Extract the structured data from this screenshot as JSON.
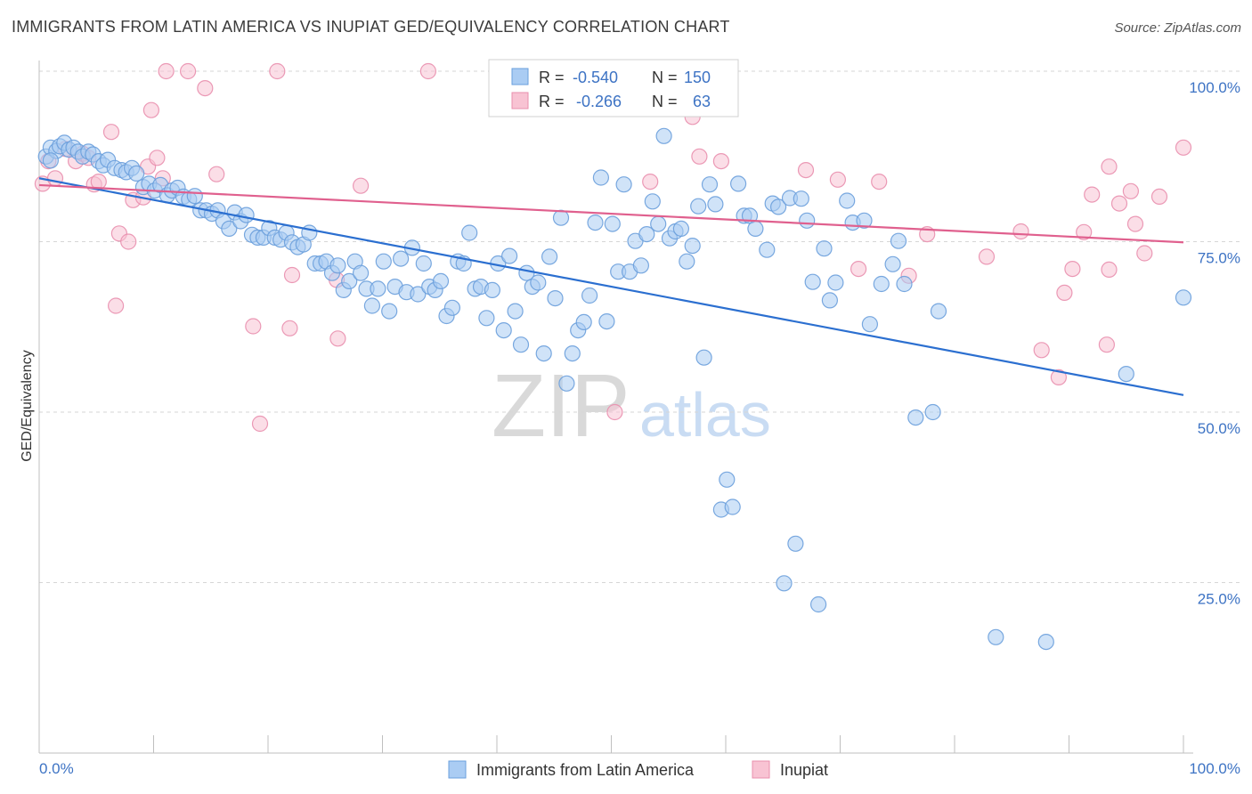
{
  "title": "IMMIGRANTS FROM LATIN AMERICA VS INUPIAT GED/EQUIVALENCY CORRELATION CHART",
  "source": "Source: ZipAtlas.com",
  "watermark": {
    "zip": "ZIP",
    "atlas": "atlas"
  },
  "colors": {
    "blue_fill": "#aaccf3",
    "blue_stroke": "#6a9fdc",
    "blue_line": "#2b6fd0",
    "pink_fill": "#f8c3d3",
    "pink_stroke": "#e98fae",
    "pink_line": "#e0608e",
    "axis_label": "#3d73c4",
    "grid": "#d6d6d6",
    "watermark": "#d9d9d9",
    "watermark_atlas": "#c9dcf3"
  },
  "legend_top": {
    "rows": [
      {
        "r_label": "R = ",
        "r_value": "-0.540",
        "n_label": "N = ",
        "n_value": "150"
      },
      {
        "r_label": "R = ",
        "r_value": "-0.266",
        "n_label": "N = ",
        "n_value": "63"
      }
    ]
  },
  "chart_data": {
    "type": "scatter",
    "title": "IMMIGRANTS FROM LATIN AMERICA VS INUPIAT GED/EQUIVALENCY CORRELATION CHART",
    "xlabel": "",
    "ylabel": "GED/Equivalency",
    "xlim": [
      0,
      100
    ],
    "ylim": [
      0,
      100
    ],
    "x_tick_labels": [
      "0.0%",
      "100.0%"
    ],
    "y_tick_labels": [
      "25.0%",
      "50.0%",
      "75.0%",
      "100.0%"
    ],
    "y_tick_values": [
      25,
      50,
      75,
      100
    ],
    "grid": true,
    "legend_placement": "bottom-center",
    "series": [
      {
        "name": "Immigrants from Latin America",
        "color": "#aaccf3",
        "r": -0.54,
        "n": 150,
        "trend": {
          "x": [
            0,
            100
          ],
          "y": [
            84.3,
            52.5
          ]
        },
        "points": [
          [
            0.6,
            87.5
          ],
          [
            1.0,
            88.8
          ],
          [
            1.5,
            88.3
          ],
          [
            1.8,
            89.0
          ],
          [
            2.2,
            89.5
          ],
          [
            2.6,
            88.5
          ],
          [
            3.0,
            88.8
          ],
          [
            3.4,
            88.2
          ],
          [
            3.8,
            87.5
          ],
          [
            4.3,
            88.2
          ],
          [
            4.7,
            87.8
          ],
          [
            5.2,
            86.8
          ],
          [
            5.6,
            86.2
          ],
          [
            6.0,
            87.0
          ],
          [
            6.6,
            85.8
          ],
          [
            7.2,
            85.5
          ],
          [
            7.6,
            85.2
          ],
          [
            8.1,
            85.8
          ],
          [
            8.5,
            85.0
          ],
          [
            9.1,
            83.0
          ],
          [
            9.6,
            83.5
          ],
          [
            10.1,
            82.5
          ],
          [
            10.6,
            83.3
          ],
          [
            11.2,
            81.8
          ],
          [
            11.6,
            82.5
          ],
          [
            12.1,
            82.9
          ],
          [
            12.6,
            81.6
          ],
          [
            13.1,
            81.2
          ],
          [
            13.6,
            81.7
          ],
          [
            14.1,
            79.6
          ],
          [
            14.6,
            79.6
          ],
          [
            15.1,
            79.1
          ],
          [
            15.6,
            79.6
          ],
          [
            16.1,
            78.0
          ],
          [
            16.6,
            76.9
          ],
          [
            17.1,
            79.3
          ],
          [
            17.6,
            78.0
          ],
          [
            18.1,
            78.9
          ],
          [
            18.6,
            76.0
          ],
          [
            19.1,
            75.6
          ],
          [
            19.6,
            75.6
          ],
          [
            20.1,
            77.0
          ],
          [
            20.6,
            75.6
          ],
          [
            21.1,
            75.3
          ],
          [
            21.6,
            76.3
          ],
          [
            22.1,
            74.9
          ],
          [
            22.6,
            74.2
          ],
          [
            23.1,
            74.6
          ],
          [
            23.6,
            76.3
          ],
          [
            24.1,
            71.8
          ],
          [
            24.6,
            71.8
          ],
          [
            25.1,
            72.1
          ],
          [
            25.6,
            70.4
          ],
          [
            26.1,
            71.5
          ],
          [
            26.6,
            67.9
          ],
          [
            27.1,
            69.2
          ],
          [
            27.6,
            72.1
          ],
          [
            28.1,
            70.4
          ],
          [
            28.6,
            68.1
          ],
          [
            29.1,
            65.6
          ],
          [
            29.6,
            68.1
          ],
          [
            30.1,
            72.1
          ],
          [
            30.6,
            64.8
          ],
          [
            31.1,
            68.4
          ],
          [
            31.6,
            72.5
          ],
          [
            32.1,
            67.6
          ],
          [
            32.6,
            74.1
          ],
          [
            33.1,
            67.3
          ],
          [
            33.6,
            71.8
          ],
          [
            34.1,
            68.4
          ],
          [
            34.6,
            67.9
          ],
          [
            35.1,
            69.2
          ],
          [
            35.6,
            64.1
          ],
          [
            36.1,
            65.3
          ],
          [
            36.6,
            72.1
          ],
          [
            37.1,
            71.8
          ],
          [
            37.6,
            76.3
          ],
          [
            38.1,
            68.1
          ],
          [
            38.6,
            68.4
          ],
          [
            39.1,
            63.8
          ],
          [
            39.6,
            67.9
          ],
          [
            40.1,
            71.8
          ],
          [
            40.6,
            62.0
          ],
          [
            41.1,
            72.9
          ],
          [
            41.6,
            64.8
          ],
          [
            42.1,
            59.9
          ],
          [
            42.6,
            70.4
          ],
          [
            43.1,
            68.4
          ],
          [
            43.6,
            69.0
          ],
          [
            44.1,
            58.6
          ],
          [
            44.6,
            72.8
          ],
          [
            45.1,
            66.7
          ],
          [
            45.6,
            78.5
          ],
          [
            46.1,
            54.2
          ],
          [
            46.6,
            58.6
          ],
          [
            47.1,
            62.0
          ],
          [
            47.6,
            63.2
          ],
          [
            48.1,
            67.1
          ],
          [
            48.6,
            77.8
          ],
          [
            49.1,
            84.4
          ],
          [
            49.6,
            63.3
          ],
          [
            50.1,
            77.6
          ],
          [
            50.6,
            70.6
          ],
          [
            51.1,
            83.4
          ],
          [
            51.6,
            70.6
          ],
          [
            52.1,
            75.1
          ],
          [
            52.6,
            71.5
          ],
          [
            53.1,
            76.1
          ],
          [
            53.6,
            80.9
          ],
          [
            54.1,
            77.6
          ],
          [
            54.6,
            90.5
          ],
          [
            55.1,
            75.5
          ],
          [
            55.6,
            76.5
          ],
          [
            56.1,
            76.9
          ],
          [
            56.6,
            72.1
          ],
          [
            57.1,
            74.4
          ],
          [
            57.6,
            80.2
          ],
          [
            58.1,
            58.0
          ],
          [
            58.6,
            83.4
          ],
          [
            59.1,
            80.5
          ],
          [
            59.6,
            35.7
          ],
          [
            60.1,
            40.1
          ],
          [
            60.6,
            36.1
          ],
          [
            61.1,
            83.5
          ],
          [
            61.6,
            78.8
          ],
          [
            62.1,
            78.8
          ],
          [
            62.6,
            76.9
          ],
          [
            63.6,
            73.8
          ],
          [
            64.1,
            80.6
          ],
          [
            64.6,
            80.1
          ],
          [
            65.1,
            24.9
          ],
          [
            65.6,
            81.4
          ],
          [
            66.1,
            30.7
          ],
          [
            66.6,
            81.3
          ],
          [
            67.1,
            78.1
          ],
          [
            67.6,
            69.1
          ],
          [
            68.1,
            21.8
          ],
          [
            68.6,
            74.0
          ],
          [
            69.1,
            66.4
          ],
          [
            69.6,
            69.0
          ],
          [
            70.6,
            81.0
          ],
          [
            71.1,
            77.8
          ],
          [
            72.1,
            78.1
          ],
          [
            72.6,
            62.9
          ],
          [
            73.6,
            68.8
          ],
          [
            74.6,
            71.7
          ],
          [
            75.1,
            75.1
          ],
          [
            75.6,
            68.8
          ],
          [
            76.6,
            49.2
          ],
          [
            78.1,
            50.0
          ],
          [
            78.6,
            64.8
          ],
          [
            83.6,
            17.0
          ],
          [
            88.0,
            16.3
          ],
          [
            95.0,
            55.6
          ],
          [
            100.0,
            66.8
          ],
          [
            1.0,
            86.9
          ]
        ]
      },
      {
        "name": "Inupiat",
        "color": "#f8c3d3",
        "r": -0.266,
        "n": 63,
        "trend": {
          "x": [
            0,
            100
          ],
          "y": [
            83.3,
            74.9
          ]
        },
        "points": [
          [
            0.3,
            83.5
          ],
          [
            0.8,
            86.8
          ],
          [
            1.4,
            84.3
          ],
          [
            2.3,
            88.6
          ],
          [
            3.2,
            86.8
          ],
          [
            3.8,
            87.9
          ],
          [
            4.3,
            87.3
          ],
          [
            4.8,
            83.4
          ],
          [
            5.2,
            83.8
          ],
          [
            6.3,
            91.1
          ],
          [
            6.7,
            65.6
          ],
          [
            7.0,
            76.2
          ],
          [
            7.8,
            75.0
          ],
          [
            8.2,
            81.1
          ],
          [
            9.1,
            81.5
          ],
          [
            9.5,
            86.0
          ],
          [
            9.8,
            94.3
          ],
          [
            10.3,
            87.3
          ],
          [
            10.8,
            84.3
          ],
          [
            11.1,
            100.0
          ],
          [
            13.0,
            100.0
          ],
          [
            14.5,
            97.5
          ],
          [
            15.5,
            84.9
          ],
          [
            18.7,
            62.6
          ],
          [
            19.3,
            48.3
          ],
          [
            20.8,
            100.0
          ],
          [
            21.9,
            62.3
          ],
          [
            22.1,
            70.1
          ],
          [
            26.0,
            69.4
          ],
          [
            26.1,
            60.8
          ],
          [
            28.1,
            83.2
          ],
          [
            34.0,
            100.0
          ],
          [
            47.1,
            100.0
          ],
          [
            50.3,
            50.0
          ],
          [
            52.1,
            100.0
          ],
          [
            52.8,
            96.0
          ],
          [
            53.4,
            83.8
          ],
          [
            57.1,
            93.3
          ],
          [
            57.7,
            87.5
          ],
          [
            59.6,
            86.8
          ],
          [
            67.0,
            85.5
          ],
          [
            69.8,
            84.1
          ],
          [
            71.6,
            71.0
          ],
          [
            73.4,
            83.8
          ],
          [
            76.0,
            70.0
          ],
          [
            77.6,
            76.1
          ],
          [
            82.8,
            72.8
          ],
          [
            85.8,
            76.5
          ],
          [
            87.6,
            59.1
          ],
          [
            89.1,
            55.1
          ],
          [
            89.6,
            67.5
          ],
          [
            90.3,
            71.0
          ],
          [
            91.3,
            76.4
          ],
          [
            92.0,
            81.9
          ],
          [
            93.3,
            59.9
          ],
          [
            93.5,
            86.0
          ],
          [
            93.5,
            70.9
          ],
          [
            94.4,
            80.6
          ],
          [
            95.4,
            82.4
          ],
          [
            95.8,
            77.6
          ],
          [
            96.6,
            73.3
          ],
          [
            97.9,
            81.6
          ],
          [
            100.0,
            88.8
          ]
        ]
      }
    ]
  }
}
